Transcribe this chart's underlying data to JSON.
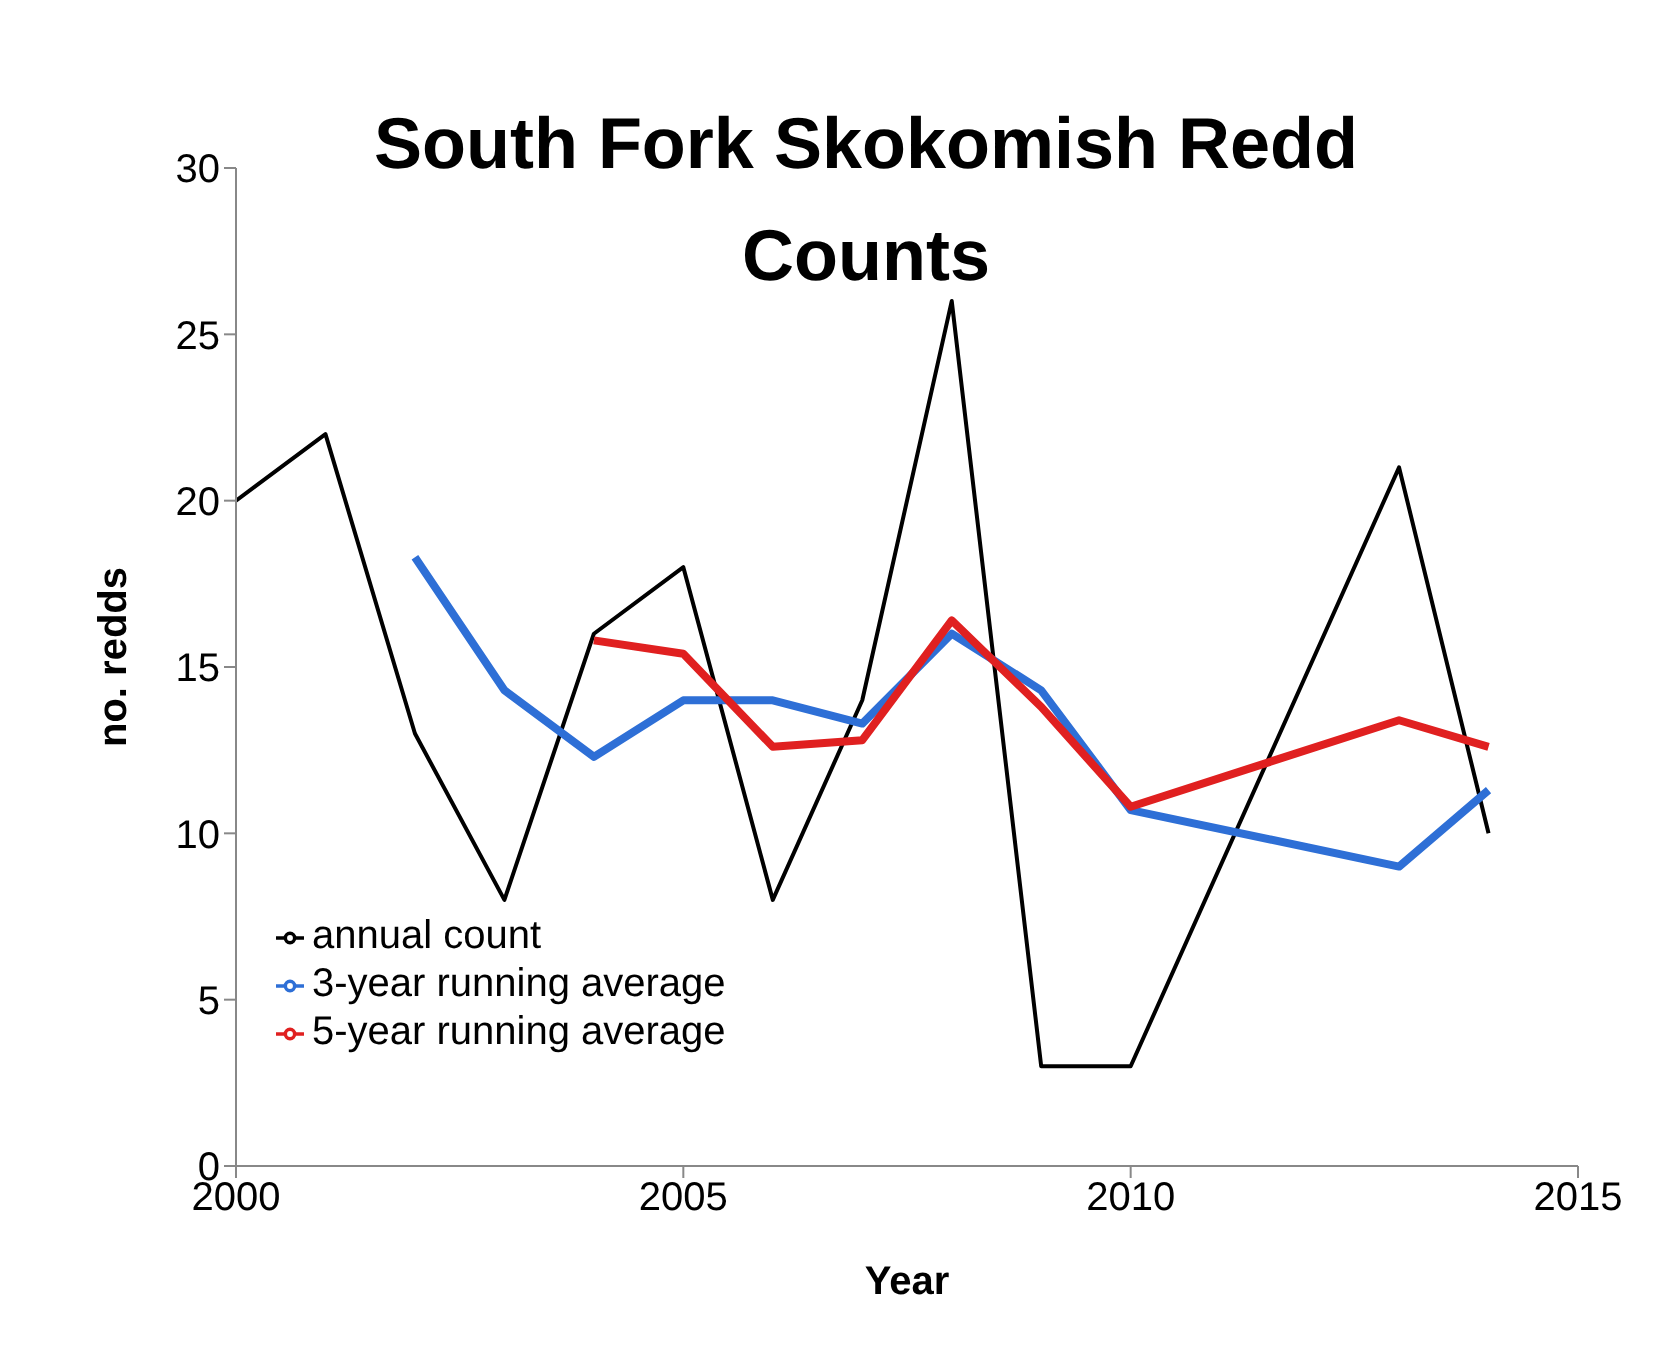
{
  "chart_data": {
    "type": "line",
    "title": "South Fork Skokomish Redd Counts",
    "xlabel": "Year",
    "ylabel": "no. redds",
    "xlim": [
      2000,
      2015
    ],
    "xticks": [
      2000,
      2005,
      2010,
      2015
    ],
    "ylim": [
      0,
      30
    ],
    "yticks": [
      0,
      5,
      10,
      15,
      20,
      25,
      30
    ],
    "grid": false,
    "legend": "bottom left",
    "marker": "none",
    "line_style": "solid",
    "series": [
      {
        "name": "annual count",
        "color": "#000000",
        "x": [
          2000,
          2001,
          2002,
          2003,
          2004,
          2005,
          2006,
          2007,
          2008,
          2009,
          2010,
          2013,
          2014
        ],
        "values": [
          20,
          22,
          13,
          8,
          16,
          18,
          8,
          14,
          26,
          3,
          3,
          21,
          10
        ]
      },
      {
        "name": "3-year running average",
        "color": "#2e6fd6",
        "x": [
          2002,
          2003,
          2004,
          2005,
          2006,
          2007,
          2008,
          2009,
          2010,
          2013,
          2014
        ],
        "values": [
          18.3,
          14.3,
          12.3,
          14,
          14,
          13.3,
          16,
          14.3,
          10.7,
          9,
          11.3
        ]
      },
      {
        "name": "5-year running average",
        "color": "#e02020",
        "x": [
          2004,
          2005,
          2006,
          2007,
          2008,
          2009,
          2010,
          2013,
          2014
        ],
        "values": [
          15.8,
          15.4,
          12.6,
          12.8,
          16.4,
          13.8,
          10.8,
          13.4,
          12.6
        ]
      }
    ]
  }
}
